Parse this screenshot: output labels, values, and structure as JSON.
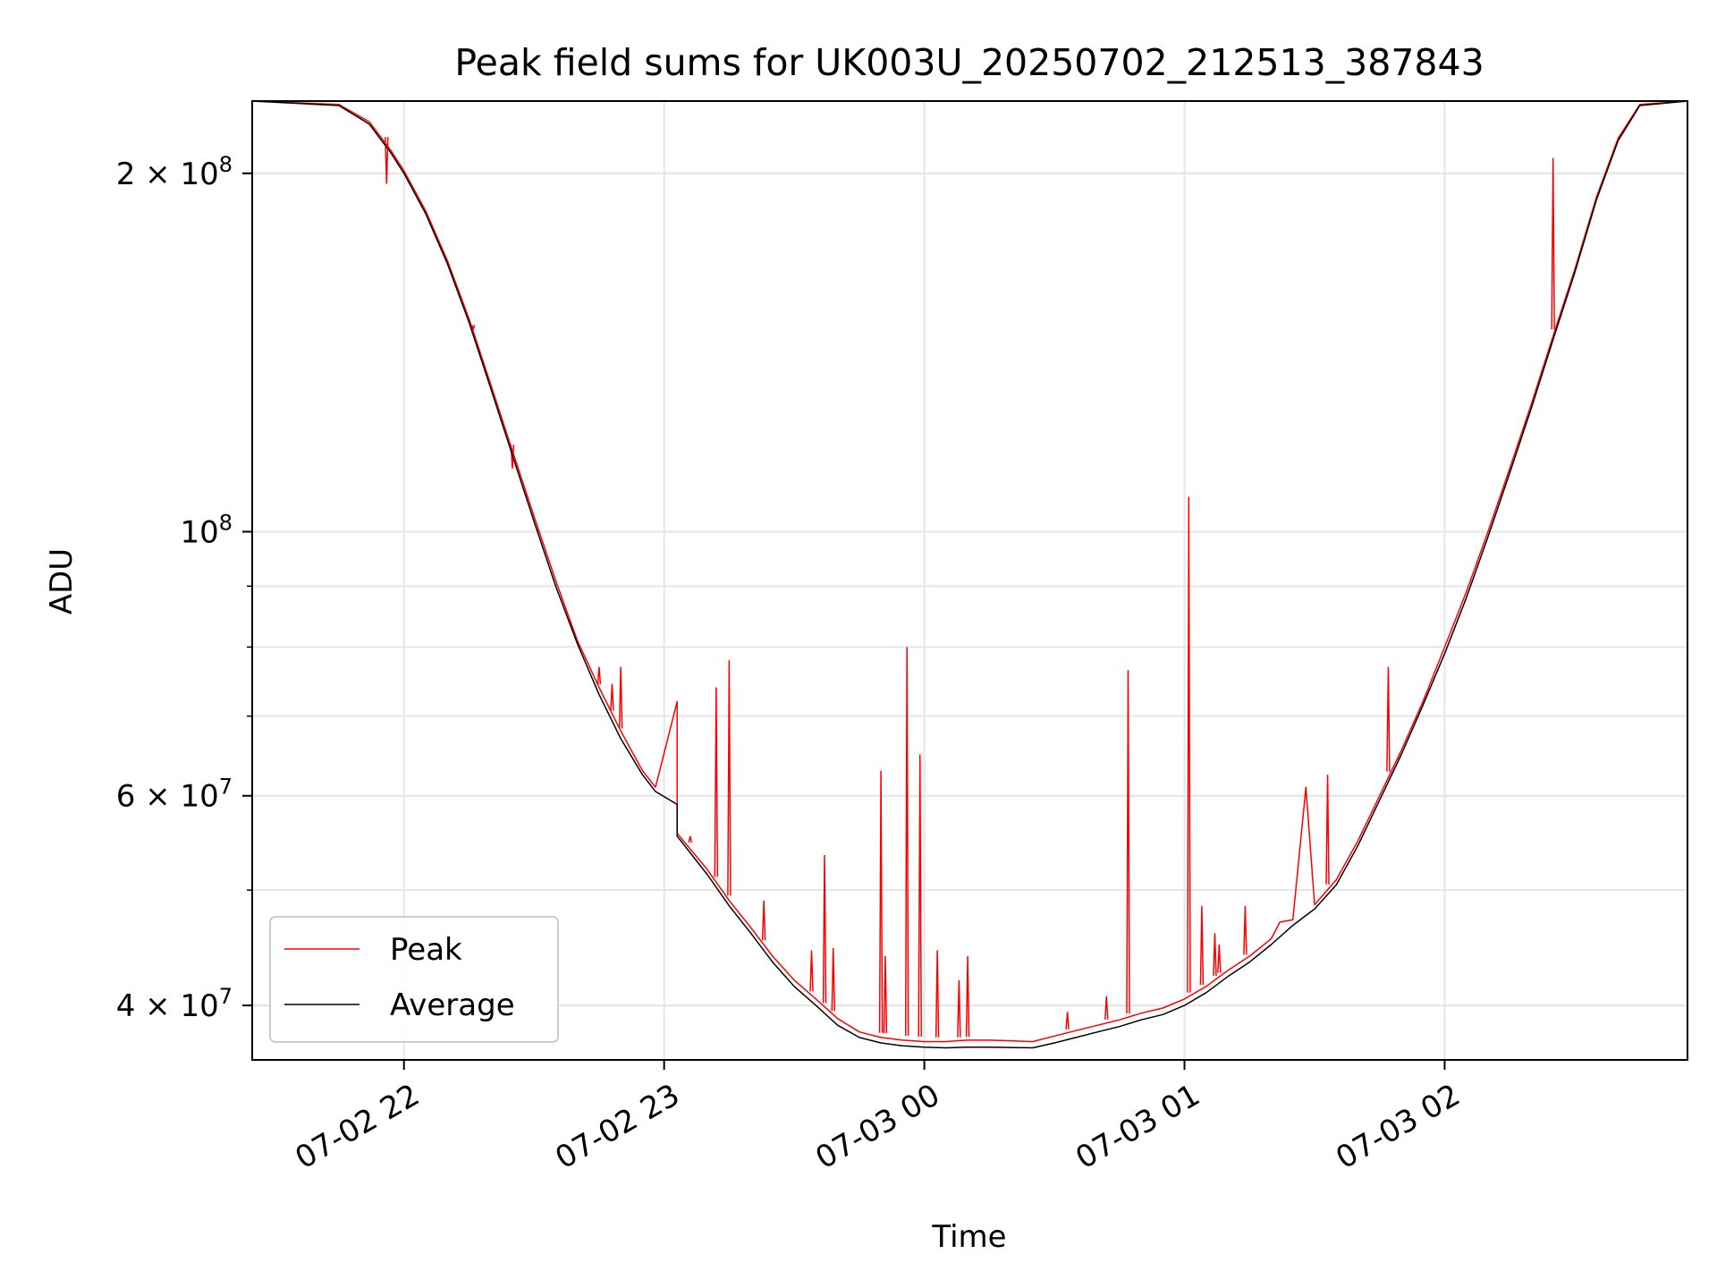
{
  "chart_data": {
    "type": "line",
    "title": "Peak field sums for UK003U_20250702_212513_387843",
    "xlabel": "Time",
    "ylabel": "ADU",
    "yscale": "log",
    "xlim": [
      "2025-07-02 21:25",
      "2025-07-03 02:56"
    ],
    "ylim": [
      36000000,
      230000000
    ],
    "x_ticks": [
      "07-02 22",
      "07-02 23",
      "07-03 00",
      "07-03 01",
      "07-03 02"
    ],
    "y_ticks": [
      {
        "mantissa": "2",
        "exponent": "8",
        "value": 200000000
      },
      {
        "mantissa": "",
        "exponent": "8",
        "value": 100000000
      },
      {
        "mantissa": "6",
        "exponent": "7",
        "value": 60000000
      },
      {
        "mantissa": "4",
        "exponent": "7",
        "value": 40000000
      }
    ],
    "grid": true,
    "legend_position": "lower-left",
    "series": [
      {
        "name": "Average",
        "color": "#000000",
        "x": [
          "2025-07-02 21:25",
          "2025-07-02 21:45",
          "2025-07-02 21:52",
          "2025-07-02 21:57",
          "2025-07-02 22:00",
          "2025-07-02 22:05",
          "2025-07-02 22:10",
          "2025-07-02 22:15",
          "2025-07-02 22:20",
          "2025-07-02 22:25",
          "2025-07-02 22:30",
          "2025-07-02 22:35",
          "2025-07-02 22:40",
          "2025-07-02 22:45",
          "2025-07-02 22:50",
          "2025-07-02 22:55",
          "2025-07-02 22:58",
          "2025-07-02 23:03",
          "2025-07-02 23:03",
          "2025-07-02 23:10",
          "2025-07-02 23:15",
          "2025-07-02 23:20",
          "2025-07-02 23:25",
          "2025-07-02 23:30",
          "2025-07-02 23:35",
          "2025-07-02 23:40",
          "2025-07-02 23:45",
          "2025-07-02 23:50",
          "2025-07-02 23:55",
          "2025-07-03 00:00",
          "2025-07-03 00:05",
          "2025-07-03 00:10",
          "2025-07-03 00:15",
          "2025-07-03 00:25",
          "2025-07-03 00:30",
          "2025-07-03 00:35",
          "2025-07-03 00:40",
          "2025-07-03 00:45",
          "2025-07-03 00:50",
          "2025-07-03 00:55",
          "2025-07-03 01:00",
          "2025-07-03 01:05",
          "2025-07-03 01:10",
          "2025-07-03 01:15",
          "2025-07-03 01:20",
          "2025-07-03 01:25",
          "2025-07-03 01:28",
          "2025-07-03 01:30",
          "2025-07-03 01:35",
          "2025-07-03 01:40",
          "2025-07-03 01:45",
          "2025-07-03 01:50",
          "2025-07-03 01:55",
          "2025-07-03 02:00",
          "2025-07-03 02:05",
          "2025-07-03 02:10",
          "2025-07-03 02:15",
          "2025-07-03 02:20",
          "2025-07-03 02:25",
          "2025-07-03 02:30",
          "2025-07-03 02:35",
          "2025-07-03 02:40",
          "2025-07-03 02:45",
          "2025-07-03 02:56"
        ],
        "y": [
          230000000,
          228000000,
          220000000,
          208000000,
          200000000,
          185000000,
          168000000,
          150000000,
          132000000,
          116000000,
          102000000,
          90000000,
          80500000,
          73000000,
          67000000,
          62500000,
          60500000,
          59000000,
          55500000,
          51500000,
          48500000,
          46000000,
          43500000,
          41500000,
          40000000,
          38500000,
          37600000,
          37200000,
          37000000,
          36900000,
          36850000,
          36900000,
          36900000,
          36850000,
          37200000,
          37600000,
          38000000,
          38400000,
          38900000,
          39300000,
          40000000,
          41000000,
          42300000,
          43500000,
          45000000,
          46700000,
          47600000,
          48200000,
          50500000,
          54500000,
          59500000,
          65000000,
          71500000,
          79000000,
          88000000,
          99000000,
          112000000,
          127000000,
          145000000,
          165000000,
          190000000,
          213000000,
          228000000,
          230000000
        ]
      },
      {
        "name": "Peak",
        "color": "#ff0000",
        "x": [
          "2025-07-02 21:25",
          "2025-07-02 21:45",
          "2025-07-02 21:52",
          "2025-07-02 21:57",
          "2025-07-02 22:00",
          "2025-07-02 22:05",
          "2025-07-02 22:10",
          "2025-07-02 22:15",
          "2025-07-02 22:20",
          "2025-07-02 22:25",
          "2025-07-02 22:30",
          "2025-07-02 22:35",
          "2025-07-02 22:40",
          "2025-07-02 22:45",
          "2025-07-02 22:50",
          "2025-07-02 22:55",
          "2025-07-02 22:58",
          "2025-07-02 23:03",
          "2025-07-02 23:03",
          "2025-07-02 23:10",
          "2025-07-02 23:15",
          "2025-07-02 23:20",
          "2025-07-02 23:25",
          "2025-07-02 23:30",
          "2025-07-02 23:35",
          "2025-07-02 23:40",
          "2025-07-02 23:45",
          "2025-07-02 23:50",
          "2025-07-02 23:55",
          "2025-07-03 00:00",
          "2025-07-03 00:05",
          "2025-07-03 00:10",
          "2025-07-03 00:15",
          "2025-07-03 00:25",
          "2025-07-03 00:30",
          "2025-07-03 00:35",
          "2025-07-03 00:40",
          "2025-07-03 00:45",
          "2025-07-03 00:50",
          "2025-07-03 00:55",
          "2025-07-03 01:00",
          "2025-07-03 01:05",
          "2025-07-03 01:10",
          "2025-07-03 01:15",
          "2025-07-03 01:20",
          "2025-07-03 01:22",
          "2025-07-03 01:25",
          "2025-07-03 01:28",
          "2025-07-03 01:30",
          "2025-07-03 01:35",
          "2025-07-03 01:40",
          "2025-07-03 01:45",
          "2025-07-03 01:50",
          "2025-07-03 01:55",
          "2025-07-03 02:00",
          "2025-07-03 02:05",
          "2025-07-03 02:10",
          "2025-07-03 02:15",
          "2025-07-03 02:20",
          "2025-07-03 02:25",
          "2025-07-03 02:30",
          "2025-07-03 02:35",
          "2025-07-03 02:40",
          "2025-07-03 02:45",
          "2025-07-03 02:56"
        ],
        "y": [
          230000000,
          228500000,
          221000000,
          209000000,
          201000000,
          186000000,
          169000000,
          151000000,
          133000000,
          117000000,
          103000000,
          91000000,
          81000000,
          74000000,
          68000000,
          63000000,
          61000000,
          72000000,
          55800000,
          52000000,
          49000000,
          46500000,
          44000000,
          42000000,
          40500000,
          39000000,
          38000000,
          37600000,
          37400000,
          37300000,
          37300000,
          37400000,
          37400000,
          37300000,
          37700000,
          38100000,
          38500000,
          38900000,
          39400000,
          39800000,
          40500000,
          41500000,
          42800000,
          44000000,
          45500000,
          47000000,
          47200000,
          61000000,
          48600000,
          51000000,
          55000000,
          60000000,
          65500000,
          72000000,
          80000000,
          89000000,
          100000000,
          113000000,
          128000000,
          146000000,
          166000000,
          191000000,
          214000000,
          228500000,
          230000000
        ]
      }
    ],
    "spikes": {
      "x": [
        "2025-07-02 21:56",
        "2025-07-02 22:16",
        "2025-07-02 22:25",
        "2025-07-02 22:45",
        "2025-07-02 22:48",
        "2025-07-02 22:50",
        "2025-07-02 23:06",
        "2025-07-02 23:12",
        "2025-07-02 23:15",
        "2025-07-02 23:23",
        "2025-07-02 23:34",
        "2025-07-02 23:37",
        "2025-07-02 23:39",
        "2025-07-02 23:50",
        "2025-07-02 23:51",
        "2025-07-02 23:56",
        "2025-07-02 23:59",
        "2025-07-03 00:03",
        "2025-07-03 00:08",
        "2025-07-03 00:10",
        "2025-07-03 00:33",
        "2025-07-03 00:42",
        "2025-07-03 00:47",
        "2025-07-03 01:01",
        "2025-07-03 01:04",
        "2025-07-03 01:07",
        "2025-07-03 01:08",
        "2025-07-03 01:14",
        "2025-07-03 01:33",
        "2025-07-03 01:47",
        "2025-07-03 02:25"
      ],
      "y": [
        196000000,
        148000000,
        113000000,
        77000000,
        74500000,
        77000000,
        55500000,
        74000000,
        78000000,
        49000000,
        44500000,
        53500000,
        44700000,
        63000000,
        44000000,
        80000000,
        65000000,
        44500000,
        42000000,
        44000000,
        39500000,
        40700000,
        76500000,
        107000000,
        48500000,
        46000000,
        45000000,
        48500000,
        62500000,
        77000000,
        206000000
      ]
    }
  }
}
